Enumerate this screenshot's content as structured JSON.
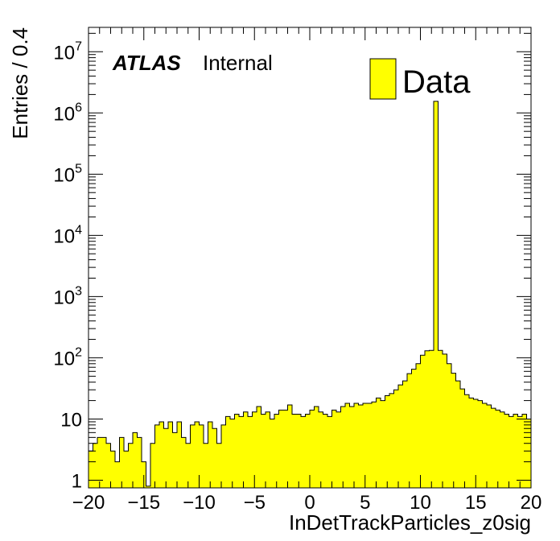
{
  "chart_data": {
    "type": "bar",
    "title": "",
    "xlabel": "InDetTrackParticles_z0sig",
    "ylabel": "Entries / 0.4",
    "x_range": [
      -20,
      20
    ],
    "bin_width": 0.4,
    "y_scale": "log",
    "ylim": [
      0.75,
      25000000
    ],
    "x_tick_labels": [
      "−20",
      "−15",
      "−10",
      "−5",
      "0",
      "5",
      "10",
      "15",
      "20"
    ],
    "y_tick_labels": [
      {
        "value": 1,
        "base": "1",
        "exp": ""
      },
      {
        "value": 10,
        "base": "10",
        "exp": ""
      },
      {
        "value": 100,
        "base": "10",
        "exp": "2"
      },
      {
        "value": 1000,
        "base": "10",
        "exp": "3"
      },
      {
        "value": 10000,
        "base": "10",
        "exp": "4"
      },
      {
        "value": 100000,
        "base": "10",
        "exp": "5"
      },
      {
        "value": 1000000,
        "base": "10",
        "exp": "6"
      },
      {
        "value": 10000000,
        "base": "10",
        "exp": "7"
      }
    ],
    "label": {
      "experiment": "ATLAS",
      "status": "Internal"
    },
    "legend": {
      "position": "top-right"
    },
    "series": [
      {
        "name": "Data",
        "color": "#ffff00",
        "edge_color": "#000000",
        "values": [
          3,
          4,
          5,
          5,
          4,
          3,
          2,
          5,
          3,
          4,
          6,
          5,
          2,
          0.8,
          4,
          8,
          9,
          7,
          9,
          6,
          9,
          5,
          4,
          8,
          9,
          8,
          4,
          9,
          7,
          4,
          8,
          11,
          10,
          12,
          11,
          13,
          11,
          13,
          16,
          12,
          13,
          10,
          12,
          14,
          14,
          17,
          12,
          12,
          11,
          12,
          14,
          16,
          13,
          12,
          11,
          14,
          13,
          16,
          18,
          16,
          18,
          17,
          18,
          18,
          19,
          22,
          20,
          24,
          26,
          30,
          36,
          42,
          55,
          65,
          80,
          110,
          130,
          132,
          1550000,
          132,
          115,
          80,
          56,
          42,
          31,
          25,
          22,
          21,
          20,
          18,
          17,
          15,
          14,
          13,
          12,
          11,
          12,
          11,
          12,
          10
        ]
      }
    ]
  }
}
